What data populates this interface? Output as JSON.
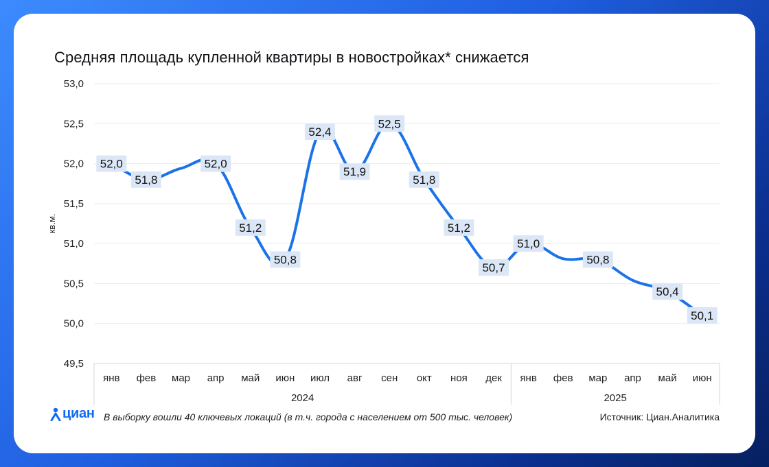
{
  "title": "Средняя площадь купленной квартиры в новостройках* снижается",
  "footer": {
    "note": "В выборку вошли 40 ключевых локаций (в т.ч. города с населением от 500 тыс. человек)",
    "source": "Источник: Циан.Аналитика",
    "logo_text": "циан"
  },
  "colors": {
    "line": "#1a73e8",
    "label_bg": "#dbe7f7",
    "grid": "#ececec"
  },
  "chart_data": {
    "type": "line",
    "title": "Средняя площадь купленной квартиры в новостройках* снижается",
    "ylabel": "кв.м.",
    "xlabel": "",
    "ylim": [
      49.5,
      53.0
    ],
    "yticks": [
      "53,0",
      "52,5",
      "52,0",
      "51,5",
      "51,0",
      "50,5",
      "50,0",
      "49,5"
    ],
    "ytick_values": [
      53.0,
      52.5,
      52.0,
      51.5,
      51.0,
      50.5,
      50.0,
      49.5
    ],
    "categories": [
      "янв",
      "фев",
      "мар",
      "апр",
      "май",
      "июн",
      "июл",
      "авг",
      "сен",
      "окт",
      "ноя",
      "дек",
      "янв",
      "фев",
      "мар",
      "апр",
      "май",
      "июн"
    ],
    "groups": [
      {
        "label": "2024",
        "count": 12
      },
      {
        "label": "2025",
        "count": 6
      }
    ],
    "values": [
      52.0,
      51.8,
      51.94,
      52.0,
      51.2,
      50.8,
      52.4,
      51.9,
      52.5,
      51.8,
      51.2,
      50.7,
      51.0,
      50.81,
      50.8,
      50.54,
      50.4,
      50.1
    ],
    "labels": [
      "52,0",
      "51,8",
      "",
      "52,0",
      "51,2",
      "50,8",
      "52,4",
      "51,9",
      "52,5",
      "51,8",
      "51,2",
      "50,7",
      "51,0",
      "",
      "50,8",
      "",
      "50,4",
      "50,1"
    ],
    "grid": true,
    "legend": "none"
  }
}
